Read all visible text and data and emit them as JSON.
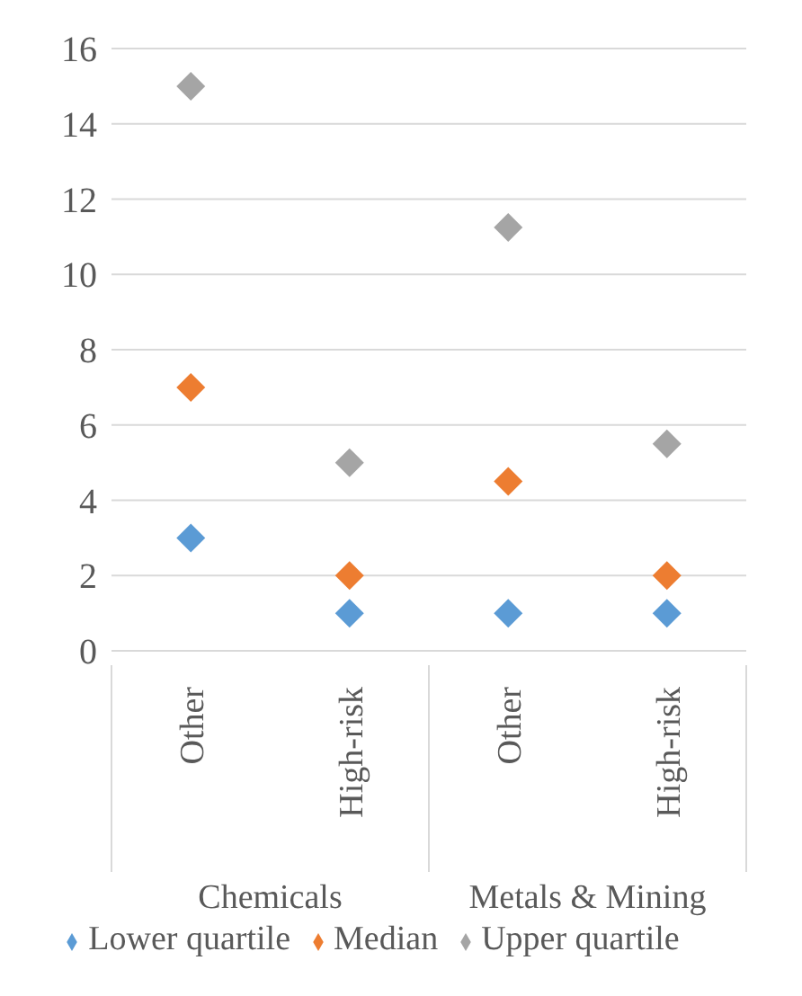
{
  "chart_data": {
    "type": "scatter",
    "categories": [
      "Other",
      "High-risk",
      "Other",
      "High-risk"
    ],
    "series": [
      {
        "name": "Lower quartile",
        "color": "#5b9bd5",
        "values": [
          3,
          1,
          1,
          1
        ]
      },
      {
        "name": "Median",
        "color": "#ed7d31",
        "values": [
          7,
          2,
          4.5,
          2
        ]
      },
      {
        "name": "Upper quartile",
        "color": "#a5a5a5",
        "values": [
          15,
          5,
          11.25,
          5.5
        ]
      }
    ],
    "ylim": [
      0,
      16
    ],
    "yticks": [
      0,
      2,
      4,
      6,
      8,
      10,
      12,
      14,
      16
    ],
    "grid": "y",
    "legend": "bottom",
    "marker": "diamond",
    "annotations": [
      "Chemicals",
      "Metals & Mining"
    ]
  }
}
